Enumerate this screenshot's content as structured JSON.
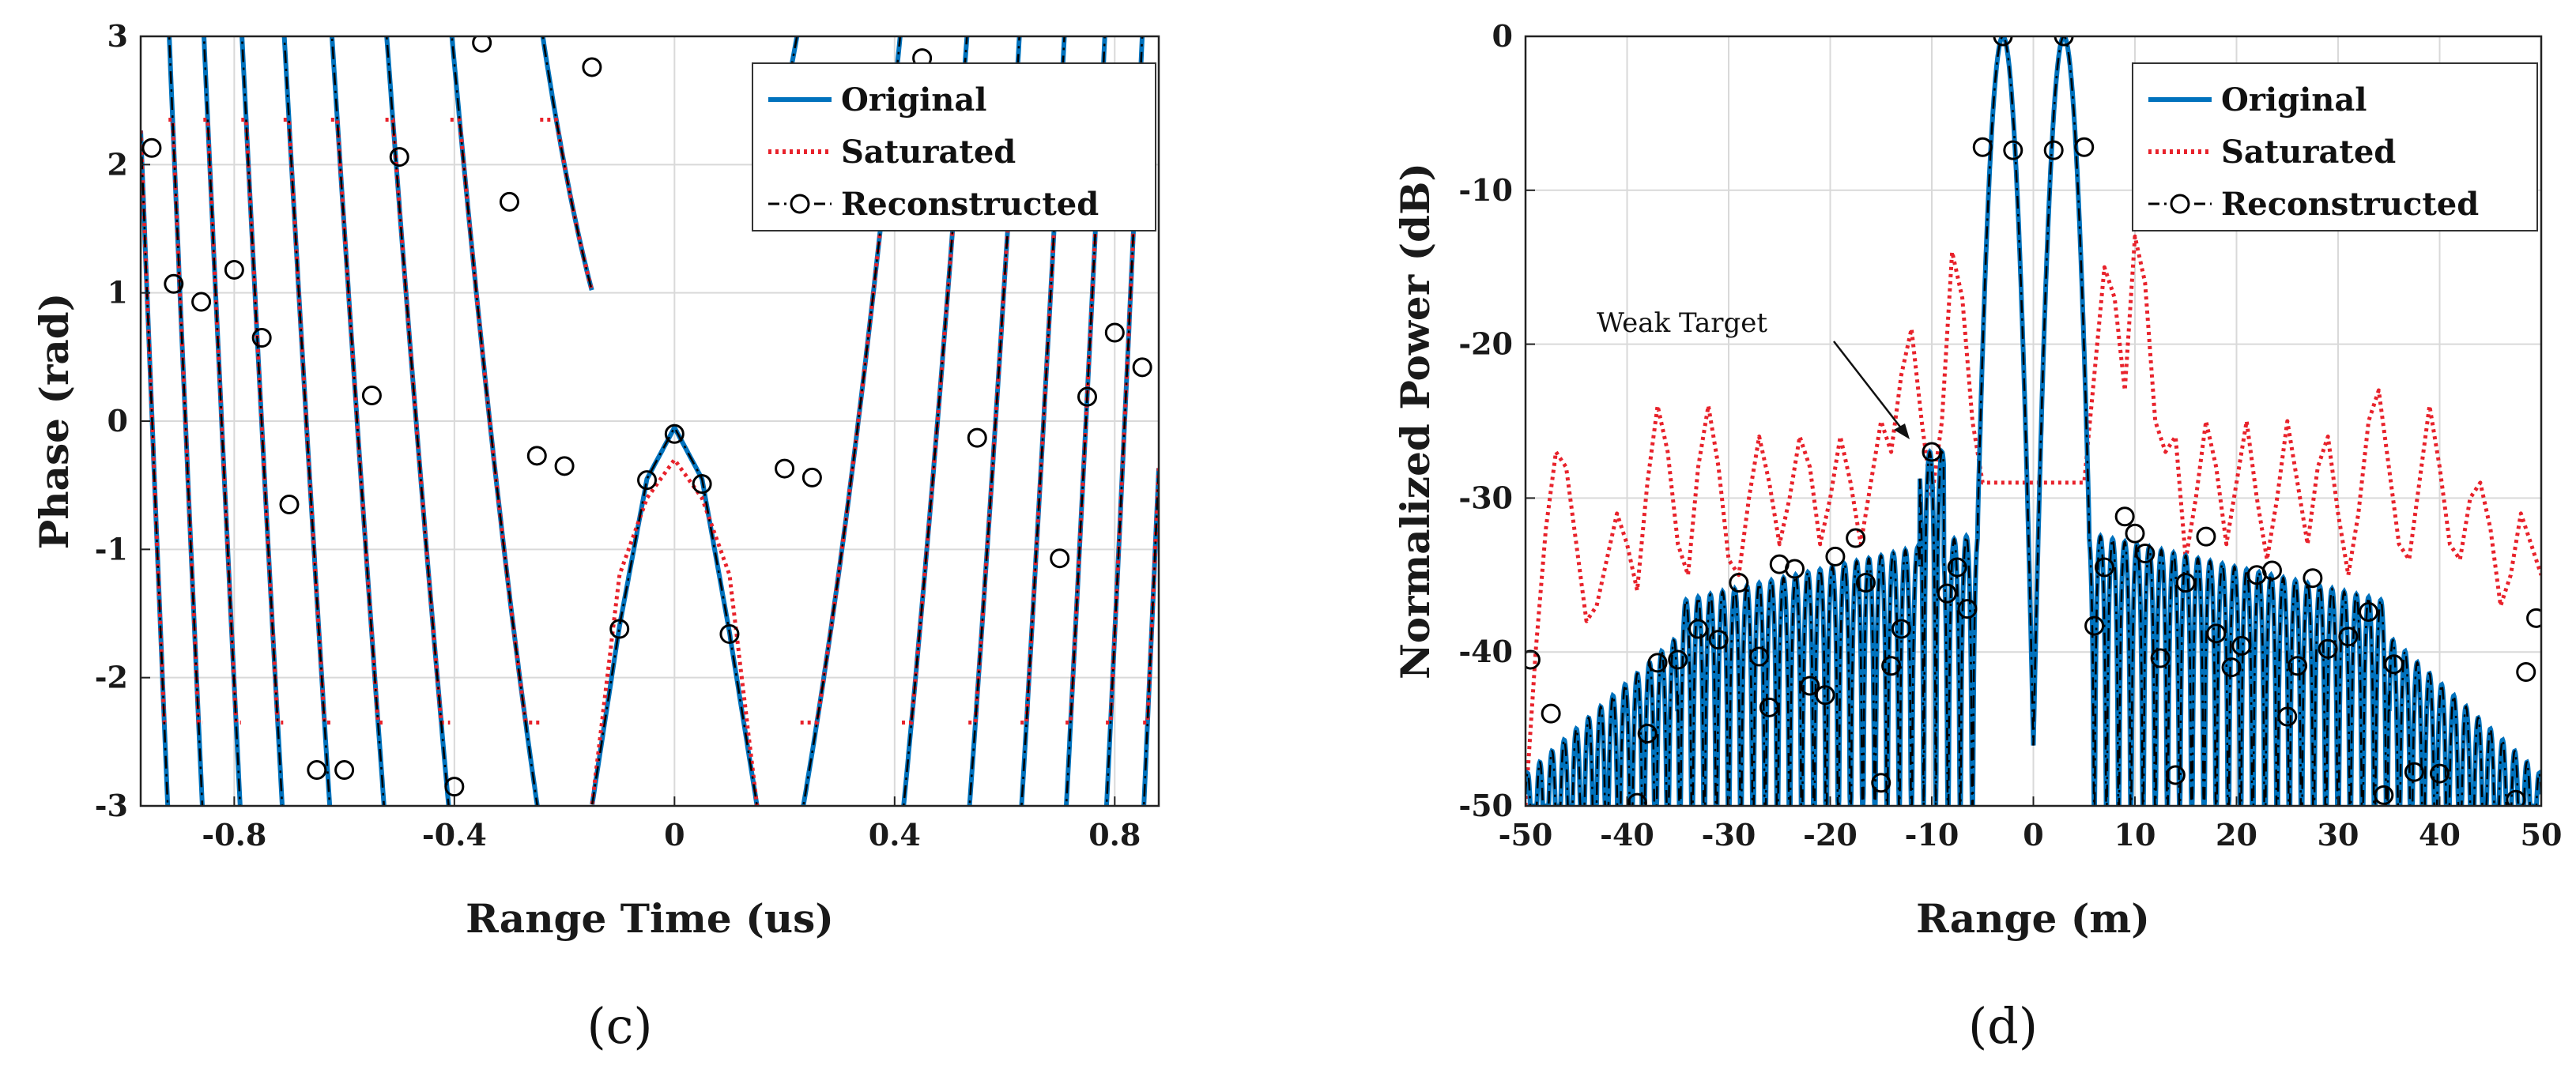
{
  "chart_data": [
    {
      "id": "c",
      "type": "line",
      "caption": "(c)",
      "xlabel": "Range Time (us)",
      "ylabel": "Phase (rad)",
      "xlim": [
        -0.97,
        0.88
      ],
      "ylim": [
        -3,
        3
      ],
      "xticks": [
        -0.8,
        -0.4,
        0,
        0.4,
        0.8
      ],
      "yticks": [
        3,
        2,
        1,
        0,
        -1,
        -2,
        -3
      ],
      "grid": true,
      "legend_position": "top-right",
      "legend": [
        "Original",
        "Saturated",
        "Reconstructed"
      ],
      "series": [
        {
          "name": "Original",
          "style": "solid",
          "color": "#0072bd"
        },
        {
          "name": "Saturated",
          "style": "dotted",
          "color": "#e8222b"
        },
        {
          "name": "Reconstructed",
          "style": "dashdot-circle",
          "color": "#000000"
        }
      ],
      "central_lobe": {
        "x": [
          -0.15,
          -0.1,
          -0.05,
          0,
          0.05,
          0.1,
          0.15
        ],
        "original": [
          -3.0,
          -1.6,
          -0.45,
          -0.05,
          -0.45,
          -1.65,
          -3.0
        ],
        "saturated": [
          -3.0,
          -1.2,
          -0.6,
          -0.3,
          -0.6,
          -1.2,
          -3.0
        ]
      },
      "markers": [
        {
          "x": -0.95,
          "y": 2.13
        },
        {
          "x": -0.91,
          "y": 1.07
        },
        {
          "x": -0.86,
          "y": 0.93
        },
        {
          "x": -0.8,
          "y": 1.18
        },
        {
          "x": -0.75,
          "y": 0.65
        },
        {
          "x": -0.7,
          "y": -0.65
        },
        {
          "x": -0.65,
          "y": -2.72
        },
        {
          "x": -0.6,
          "y": -2.72
        },
        {
          "x": -0.55,
          "y": 0.2
        },
        {
          "x": -0.5,
          "y": 2.06
        },
        {
          "x": -0.4,
          "y": -2.85
        },
        {
          "x": -0.35,
          "y": 2.95
        },
        {
          "x": -0.3,
          "y": 1.71
        },
        {
          "x": -0.25,
          "y": -0.27
        },
        {
          "x": -0.2,
          "y": -0.35
        },
        {
          "x": -0.15,
          "y": 2.76
        },
        {
          "x": -0.1,
          "y": -1.62
        },
        {
          "x": -0.05,
          "y": -0.46
        },
        {
          "x": 0,
          "y": -0.1
        },
        {
          "x": 0.05,
          "y": -0.49
        },
        {
          "x": 0.1,
          "y": -1.66
        },
        {
          "x": 0.2,
          "y": -0.37
        },
        {
          "x": 0.25,
          "y": -0.44
        },
        {
          "x": 0.45,
          "y": 2.83
        },
        {
          "x": 0.55,
          "y": -0.13
        },
        {
          "x": 0.7,
          "y": -1.07
        },
        {
          "x": 0.75,
          "y": 0.19
        },
        {
          "x": 0.8,
          "y": 0.69
        },
        {
          "x": 0.85,
          "y": 0.42
        }
      ]
    },
    {
      "id": "d",
      "type": "line",
      "caption": "(d)",
      "xlabel": "Range (m)",
      "ylabel": "Normalized Power (dB)",
      "xlim": [
        -50,
        50
      ],
      "ylim": [
        -50,
        0
      ],
      "xticks": [
        -50,
        -40,
        -30,
        -20,
        -10,
        0,
        10,
        20,
        30,
        40,
        50
      ],
      "yticks": [
        0,
        -10,
        -20,
        -30,
        -40,
        -50
      ],
      "grid": true,
      "legend_position": "top-right",
      "legend": [
        "Original",
        "Saturated",
        "Reconstructed"
      ],
      "annotation": {
        "text": "Weak Target",
        "x": -10,
        "y": -27
      },
      "main_peaks": [
        {
          "x": -3,
          "y": 0
        },
        {
          "x": 3,
          "y": 0
        }
      ],
      "series": [
        {
          "name": "Saturated",
          "style": "dotted",
          "color": "#e8222b",
          "x": [
            -50,
            -49,
            -48,
            -47,
            -46,
            -45,
            -44,
            -43,
            -42,
            -41,
            -40,
            -39,
            -38,
            -37,
            -36,
            -35,
            -34,
            -33,
            -32,
            -31,
            -30,
            -29,
            -28,
            -27,
            -26,
            -25,
            -24,
            -23,
            -22,
            -21,
            -20,
            -19,
            -18,
            -17,
            -16,
            -15,
            -14,
            -13,
            -12,
            -11,
            -10,
            -9,
            -8,
            -7,
            -6,
            -5,
            5,
            6,
            7,
            8,
            9,
            10,
            11,
            12,
            13,
            14,
            15,
            16,
            17,
            18,
            19,
            20,
            21,
            22,
            23,
            24,
            25,
            26,
            27,
            28,
            29,
            30,
            31,
            32,
            33,
            34,
            35,
            36,
            37,
            38,
            39,
            40,
            41,
            42,
            43,
            44,
            45,
            46,
            47,
            48,
            49,
            50
          ],
          "y": [
            -50,
            -40,
            -32,
            -27,
            -28,
            -33,
            -38,
            -37,
            -34,
            -31,
            -33,
            -36,
            -29,
            -24,
            -27,
            -33,
            -35,
            -28,
            -24,
            -28,
            -34,
            -35,
            -30,
            -26,
            -29,
            -33,
            -30,
            -26,
            -28,
            -33,
            -30,
            -26,
            -29,
            -33,
            -29,
            -25,
            -27,
            -22,
            -19,
            -25,
            -30,
            -25,
            -14,
            -17,
            -25,
            -29,
            -29,
            -22,
            -15,
            -17,
            -23,
            -13,
            -16,
            -25,
            -27,
            -26,
            -34,
            -30,
            -25,
            -28,
            -33,
            -29,
            -25,
            -30,
            -34,
            -30,
            -25,
            -29,
            -33,
            -28,
            -26,
            -31,
            -35,
            -31,
            -25,
            -23,
            -28,
            -33,
            -34,
            -29,
            -24,
            -28,
            -33,
            -34,
            -30,
            -29,
            -32,
            -37,
            -35,
            -31,
            -33,
            -35
          ]
        },
        {
          "name": "Original",
          "style": "solid",
          "color": "#0072bd"
        },
        {
          "name": "Reconstructed",
          "style": "dashdot-circle",
          "color": "#000000"
        }
      ],
      "markers": [
        {
          "x": -49.5,
          "y": -40.5
        },
        {
          "x": -47.5,
          "y": -44
        },
        {
          "x": -39,
          "y": -49.8
        },
        {
          "x": -38,
          "y": -45.3
        },
        {
          "x": -37,
          "y": -40.7
        },
        {
          "x": -35,
          "y": -40.5
        },
        {
          "x": -33,
          "y": -38.5
        },
        {
          "x": -31,
          "y": -39.2
        },
        {
          "x": -29,
          "y": -35.5
        },
        {
          "x": -27,
          "y": -40.3
        },
        {
          "x": -26,
          "y": -43.6
        },
        {
          "x": -25,
          "y": -34.3
        },
        {
          "x": -23.5,
          "y": -34.6
        },
        {
          "x": -22,
          "y": -42.2
        },
        {
          "x": -20.5,
          "y": -42.8
        },
        {
          "x": -19.5,
          "y": -33.8
        },
        {
          "x": -17.5,
          "y": -32.6
        },
        {
          "x": -16.5,
          "y": -35.5
        },
        {
          "x": -15,
          "y": -48.5
        },
        {
          "x": -14,
          "y": -40.9
        },
        {
          "x": -13,
          "y": -38.5
        },
        {
          "x": -10,
          "y": -27
        },
        {
          "x": -8.5,
          "y": -36.2
        },
        {
          "x": -7.5,
          "y": -34.5
        },
        {
          "x": -6.5,
          "y": -37.2
        },
        {
          "x": -5,
          "y": -7.2
        },
        {
          "x": -3,
          "y": 0
        },
        {
          "x": -2,
          "y": -7.4
        },
        {
          "x": 2,
          "y": -7.4
        },
        {
          "x": 3,
          "y": 0
        },
        {
          "x": 5,
          "y": -7.2
        },
        {
          "x": 6,
          "y": -38.3
        },
        {
          "x": 7,
          "y": -34.5
        },
        {
          "x": 9,
          "y": -31.2
        },
        {
          "x": 10,
          "y": -32.3
        },
        {
          "x": 11,
          "y": -33.6
        },
        {
          "x": 12.5,
          "y": -40.4
        },
        {
          "x": 14,
          "y": -48
        },
        {
          "x": 15,
          "y": -35.5
        },
        {
          "x": 17,
          "y": -32.5
        },
        {
          "x": 18,
          "y": -38.8
        },
        {
          "x": 19.5,
          "y": -41
        },
        {
          "x": 20.5,
          "y": -39.6
        },
        {
          "x": 22,
          "y": -35
        },
        {
          "x": 23.5,
          "y": -34.7
        },
        {
          "x": 25,
          "y": -44.2
        },
        {
          "x": 26,
          "y": -40.9
        },
        {
          "x": 27.5,
          "y": -35.2
        },
        {
          "x": 29,
          "y": -39.8
        },
        {
          "x": 31,
          "y": -39
        },
        {
          "x": 33,
          "y": -37.4
        },
        {
          "x": 34.5,
          "y": -49.3
        },
        {
          "x": 35.5,
          "y": -40.8
        },
        {
          "x": 37.5,
          "y": -47.8
        },
        {
          "x": 40,
          "y": -47.9
        },
        {
          "x": 47.5,
          "y": -49.6
        },
        {
          "x": 48.5,
          "y": -41.3
        },
        {
          "x": 49.5,
          "y": -37.8
        }
      ]
    }
  ]
}
